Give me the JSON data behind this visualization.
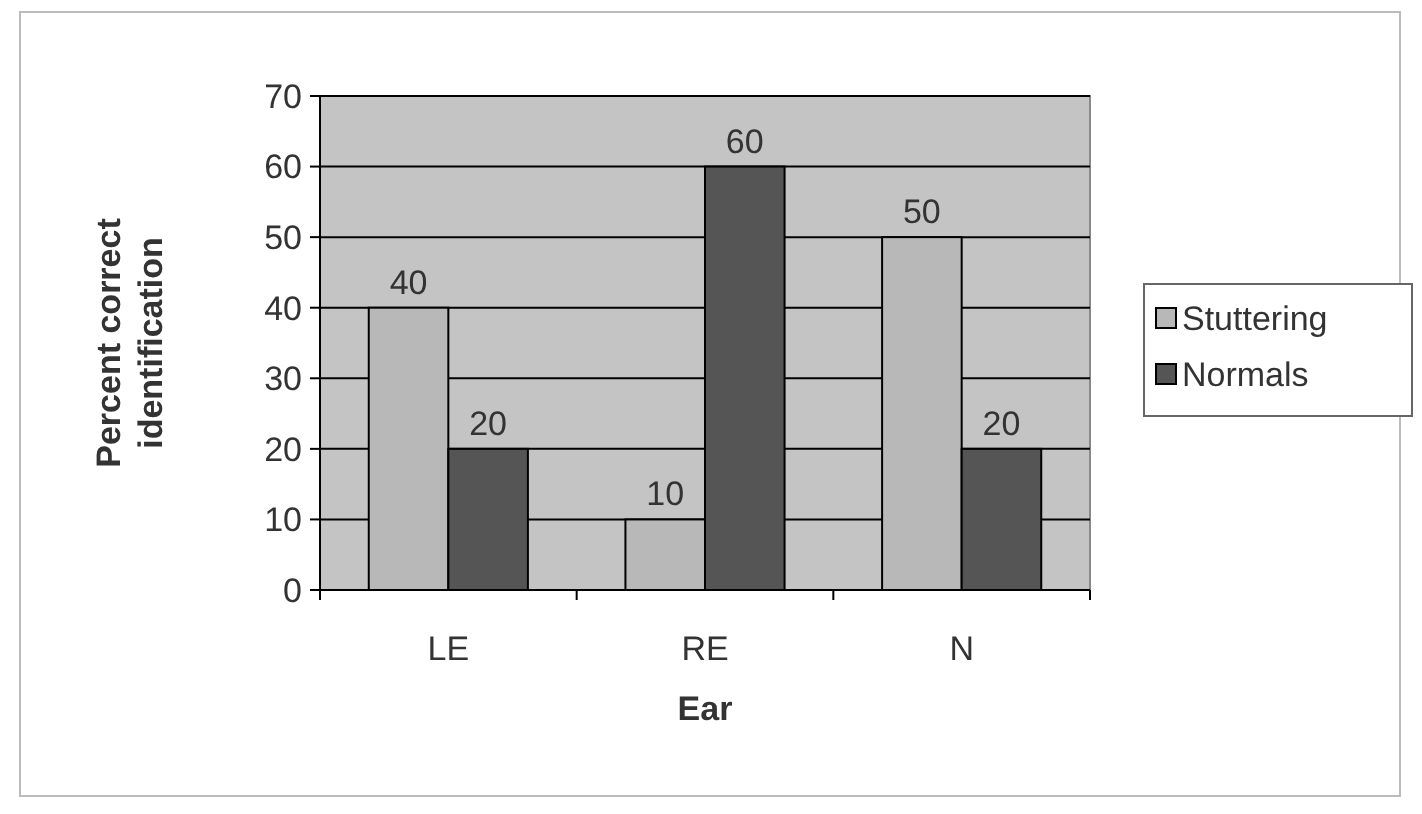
{
  "chart_data": {
    "type": "bar",
    "xlabel": "Ear",
    "ylabel": "Percent correct identification",
    "categories": [
      "LE",
      "RE",
      "N"
    ],
    "series": [
      {
        "name": "Stuttering",
        "color": "#b8b8b8",
        "values": [
          40,
          10,
          50
        ]
      },
      {
        "name": "Normals",
        "color": "#555555",
        "values": [
          20,
          60,
          20
        ]
      }
    ],
    "ylim": [
      0,
      70
    ],
    "yticks": [
      0,
      10,
      20,
      30,
      40,
      50,
      60,
      70
    ],
    "grid": "y",
    "legend": "right",
    "data_labels": true
  }
}
